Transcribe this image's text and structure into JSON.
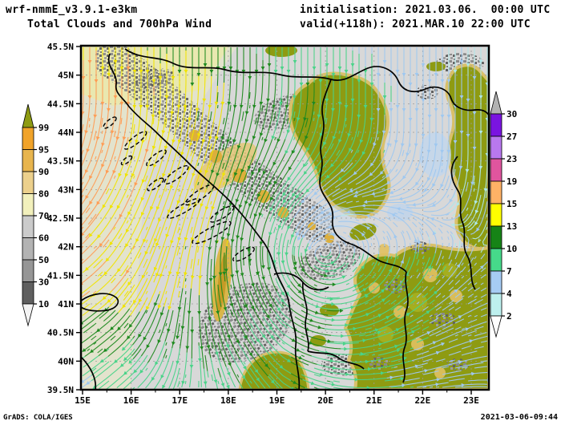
{
  "header": {
    "model": "wrf-nmmE_v3.9.1-e3km",
    "subtitle": "Total Clouds and 700hPa Wind",
    "init_label": "initialisation: 2021.03.06.  00:00 UTC",
    "valid_label": "valid(+118h): 2021.MAR.10 22:00 UTC"
  },
  "footer": {
    "left": "GrADS: COLA/IGES",
    "right": "2021-03-06-09:44"
  },
  "axes": {
    "lat_labels": [
      "45.5N",
      "45N",
      "44.5N",
      "44N",
      "43.5N",
      "43N",
      "42.5N",
      "42N",
      "41.5N",
      "41N",
      "40.5N",
      "40N",
      "39.5N"
    ],
    "lon_labels": [
      "15E",
      "16E",
      "17E",
      "18E",
      "19E",
      "20E",
      "21E",
      "22E",
      "23E"
    ]
  },
  "cloud_colorbar": {
    "labels": [
      "99",
      "95",
      "90",
      "80",
      "70",
      "60",
      "50",
      "30",
      "10"
    ],
    "arrow_top_color": "#8e9b12",
    "segment_colors": [
      "#f0a32a",
      "#e8b54e",
      "#ecd08c",
      "#f2f0bc",
      "#cbcbcb",
      "#b3b3b3",
      "#969696",
      "#5f5f5f"
    ],
    "arrow_bottom_color": "#f4f4f4"
  },
  "wind_colorbar": {
    "labels": [
      "30",
      "27",
      "23",
      "19",
      "15",
      "13",
      "10",
      "7",
      "4",
      "2"
    ],
    "arrow_top_color": "#b2b2b2",
    "segment_colors": [
      "#7a14e0",
      "#b878ee",
      "#e0559e",
      "#ffb266",
      "#ffff00",
      "#168316",
      "#46d98a",
      "#a6ccf4",
      "#bdf0ee"
    ],
    "arrow_bottom_color": "#ffffff"
  },
  "map": {
    "background_color": "#d8d8d8",
    "gridline_color": "#9a9a9a",
    "stream_speed_bins": [
      15,
      13,
      10,
      7,
      4
    ],
    "stream_colors": [
      "#ff9d55",
      "#f0e400",
      "#1f8a1f",
      "#4ad389",
      "#9fc8f0",
      "#aee8ea"
    ]
  }
}
